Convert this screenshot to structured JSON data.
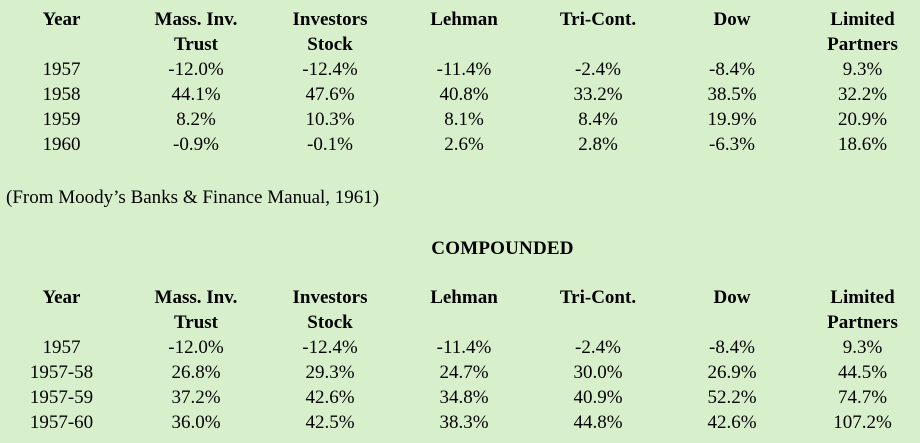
{
  "headers": [
    [
      "Year",
      ""
    ],
    [
      "Mass. Inv.",
      "Trust"
    ],
    [
      "Investors",
      "Stock"
    ],
    [
      "Lehman",
      ""
    ],
    [
      "Tri-Cont.",
      ""
    ],
    [
      "Dow",
      ""
    ],
    [
      "Limited",
      "Partners"
    ]
  ],
  "annual": {
    "rows": [
      [
        "1957",
        "-12.0%",
        "-12.4%",
        "-11.4%",
        "-2.4%",
        "-8.4%",
        "9.3%"
      ],
      [
        "1958",
        "44.1%",
        "47.6%",
        "40.8%",
        "33.2%",
        "38.5%",
        "32.2%"
      ],
      [
        "1959",
        "8.2%",
        "10.3%",
        "8.1%",
        "8.4%",
        "19.9%",
        "20.9%"
      ],
      [
        "1960",
        "-0.9%",
        "-0.1%",
        "2.6%",
        "2.8%",
        "-6.3%",
        "18.6%"
      ]
    ]
  },
  "source": "(From Moody’s Banks & Finance Manual, 1961)",
  "compounded": {
    "title": "COMPOUNDED",
    "rows": [
      [
        "1957",
        "-12.0%",
        "-12.4%",
        "-11.4%",
        "-2.4%",
        "-8.4%",
        "9.3%"
      ],
      [
        "1957-58",
        "26.8%",
        "29.3%",
        "24.7%",
        "30.0%",
        "26.9%",
        "44.5%"
      ],
      [
        "1957-59",
        "37.2%",
        "42.6%",
        "34.8%",
        "40.9%",
        "52.2%",
        "74.7%"
      ],
      [
        "1957-60",
        "36.0%",
        "42.5%",
        "38.3%",
        "44.8%",
        "42.6%",
        "107.2%"
      ]
    ]
  }
}
